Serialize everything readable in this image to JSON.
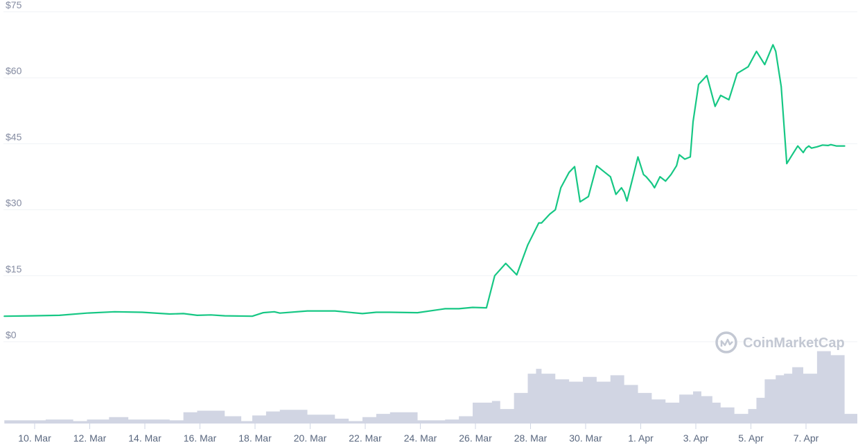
{
  "watermark": {
    "text": "CoinMarketCap",
    "icon": "coinmarketcap-logo-icon"
  },
  "chart_data": {
    "type": "line",
    "title": "",
    "xlabel": "",
    "ylabel": "",
    "colors": {
      "price_line": "#16c784",
      "volume_bars": "#d1d5e3",
      "grid": "#eff2f5",
      "axis_text": "#858ca2"
    },
    "y_ticks": [
      "$0",
      "$15",
      "$30",
      "$45",
      "$60",
      "$75"
    ],
    "y_tick_values": [
      0,
      15,
      30,
      45,
      60,
      75
    ],
    "ylim": [
      0,
      75
    ],
    "x_ticks": [
      "10. Mar",
      "12. Mar",
      "14. Mar",
      "16. Mar",
      "18. Mar",
      "20. Mar",
      "22. Mar",
      "24. Mar",
      "26. Mar",
      "28. Mar",
      "30. Mar",
      "1. Apr",
      "3. Apr",
      "5. Apr",
      "7. Apr"
    ],
    "xlim_days": [
      0,
      30.5
    ],
    "grid": true,
    "series": [
      {
        "type": "line",
        "x_days": [
          0,
          1,
          2,
          3,
          4,
          5,
          6,
          6.5,
          7,
          7.5,
          8,
          9,
          9.4,
          9.8,
          10,
          11,
          11.5,
          12,
          13,
          13.5,
          14,
          15,
          16,
          16.5,
          17,
          17.5,
          17.8,
          18.2,
          18.6,
          19,
          19.4,
          19.5,
          19.8,
          20,
          20.2,
          20.5,
          20.7,
          20.9,
          21.2,
          21.5,
          21.8,
          22,
          22.2,
          22.4,
          22.5,
          22.6,
          22.8,
          23,
          23.2,
          23.3,
          23.5,
          23.6,
          23.8,
          24,
          24.2,
          24.4,
          24.5,
          24.7,
          24.9,
          25,
          25.2,
          25.5,
          25.8,
          26,
          26.3,
          26.6,
          27,
          27.3,
          27.6,
          27.9,
          28,
          28.2,
          28.4,
          28.6,
          28.8,
          29,
          29.1,
          29.2,
          29.3,
          29.5,
          29.7,
          29.9,
          30,
          30.2,
          30.5
        ],
        "values": [
          5.8,
          5.9,
          6.0,
          6.5,
          6.8,
          6.7,
          6.3,
          6.4,
          6.0,
          6.1,
          5.9,
          5.8,
          6.6,
          6.8,
          6.5,
          7.0,
          7.0,
          7.0,
          6.4,
          6.7,
          6.7,
          6.6,
          7.5,
          7.5,
          7.8,
          7.7,
          15.0,
          17.8,
          15.2,
          22.0,
          27.0,
          27.0,
          29.0,
          30.0,
          35.0,
          38.5,
          39.8,
          31.8,
          33.0,
          40.0,
          38.5,
          37.5,
          33.5,
          35.0,
          34.0,
          32.0,
          37.0,
          42.0,
          38.0,
          37.5,
          36.0,
          35.0,
          37.5,
          36.5,
          38.0,
          40.0,
          42.5,
          41.5,
          42.0,
          50.0,
          58.5,
          60.5,
          53.5,
          56.0,
          55.0,
          61.0,
          62.5,
          66.0,
          63.0,
          67.5,
          66.0,
          58.0,
          40.5,
          42.5,
          44.5,
          43.0,
          44.0,
          44.5,
          44.0,
          44.3,
          44.7,
          44.6,
          44.8,
          44.5,
          44.5
        ]
      },
      {
        "type": "area",
        "name": "",
        "x_days": [
          0,
          1.5,
          2.5,
          3,
          3.8,
          4.5,
          6,
          6.5,
          7,
          8,
          8.6,
          9,
          9.5,
          10,
          11,
          12,
          12.5,
          13,
          13.5,
          14,
          15,
          16,
          16.5,
          17,
          17.7,
          18,
          18.5,
          19,
          19.3,
          19.5,
          20,
          20.5,
          21,
          21.5,
          22,
          22.5,
          23,
          23.5,
          24,
          24.5,
          25,
          25.3,
          25.7,
          26,
          26.5,
          27,
          27.3,
          27.6,
          28,
          28.3,
          28.6,
          29,
          29.5,
          30,
          30.5
        ],
        "values": [
          4,
          5,
          3,
          5,
          8,
          5,
          4,
          14,
          16,
          9,
          3,
          10,
          15,
          17,
          11,
          6,
          3,
          8,
          12,
          14,
          4,
          5,
          9,
          26,
          28,
          18,
          38,
          62,
          68,
          62,
          55,
          52,
          58,
          52,
          60,
          48,
          38,
          30,
          26,
          36,
          40,
          34,
          26,
          20,
          12,
          18,
          32,
          55,
          60,
          62,
          70,
          62,
          90,
          85,
          12
        ]
      }
    ]
  }
}
